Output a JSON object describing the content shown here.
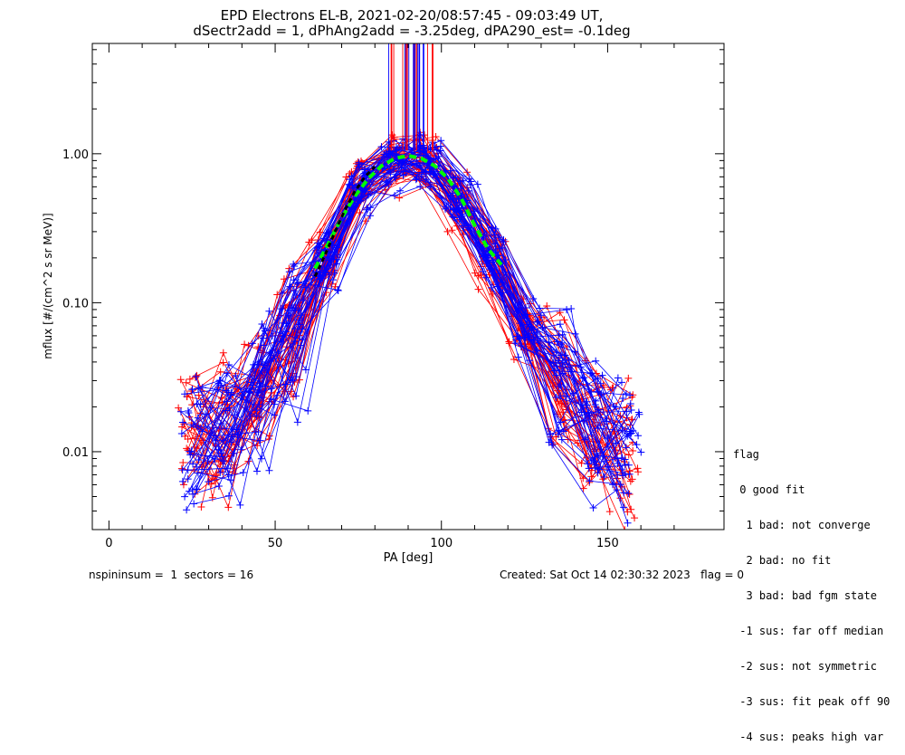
{
  "chart_data": {
    "type": "line",
    "title": "EPD Electrons EL-B, 2021-02-20/08:57:45 - 09:03:49 UT,",
    "subtitle": "dSectr2add = 1, dPhAng2add = -3.25deg, dPA290_est=  -0.1deg",
    "xlabel": "PA [deg]",
    "ylabel": "mflux [#/(cm^2 s sr MeV)]",
    "xlim": [
      -5,
      185
    ],
    "ylim": [
      0.003,
      5.5
    ],
    "yscale": "log",
    "x_ticks": [
      0,
      50,
      100,
      150
    ],
    "x_tick_labels": [
      "0",
      "50",
      "100",
      "150"
    ],
    "y_ticks": [
      0.01,
      0.1,
      1.0
    ],
    "y_tick_labels": [
      "0.01",
      "0.10",
      "1.00"
    ],
    "grid": false,
    "colors": {
      "red": "#ff0000",
      "blue": "#0000ff",
      "fit": "#00ff00",
      "median": "#000000"
    },
    "n_curves_per_color": 40,
    "pa_bins": [
      25,
      35,
      45,
      55,
      65,
      75,
      85,
      95,
      105,
      115,
      125,
      135,
      145,
      155
    ],
    "typical_profile": [
      0.012,
      0.015,
      0.025,
      0.06,
      0.2,
      0.6,
      0.9,
      0.9,
      0.5,
      0.2,
      0.07,
      0.03,
      0.015,
      0.01
    ],
    "fit_curve": {
      "x": [
        62,
        66,
        70,
        74,
        78,
        82,
        86,
        90,
        94,
        98,
        102,
        106,
        110,
        114,
        118
      ],
      "y": [
        0.17,
        0.25,
        0.37,
        0.52,
        0.68,
        0.83,
        0.93,
        0.97,
        0.93,
        0.83,
        0.68,
        0.5,
        0.33,
        0.23,
        0.18
      ]
    },
    "median_curve": {
      "x": [
        62,
        65,
        68,
        71,
        74,
        77,
        80
      ],
      "y": [
        0.15,
        0.21,
        0.3,
        0.42,
        0.56,
        0.7,
        0.82
      ]
    }
  },
  "legend": {
    "title": "flag",
    "items": [
      " 0 good fit",
      "  1 bad: not converge",
      "  2 bad: no fit",
      "  3 bad: bad fgm state",
      " -1 sus: far off median",
      " -2 sus: not symmetric",
      " -3 sus: fit peak off 90",
      " -4 sus: peaks high var"
    ]
  },
  "footer": {
    "left": "nspininsum =  1  sectors = 16",
    "right": "Created: Sat Oct 14 02:30:32 2023   flag = 0"
  }
}
